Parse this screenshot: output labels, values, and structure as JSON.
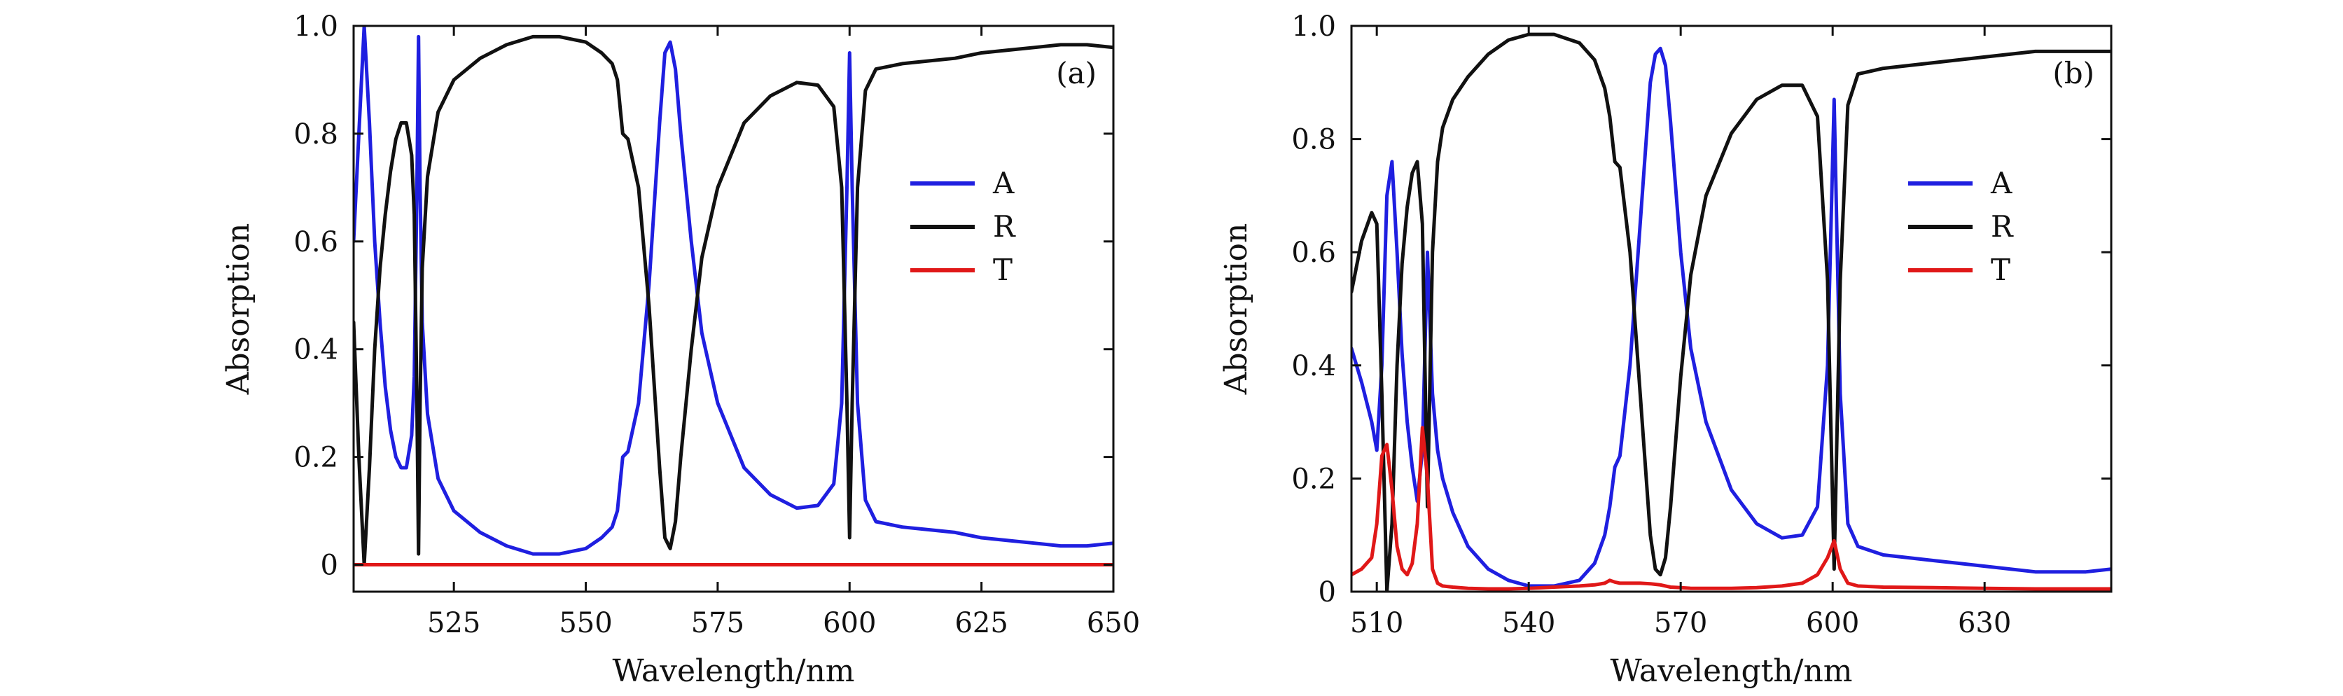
{
  "colors": {
    "A": "#1f1fe0",
    "R": "#111111",
    "T": "#e01818"
  },
  "chart_data": [
    {
      "type": "line",
      "panel_label": "(a)",
      "xlabel": "Wavelength/nm",
      "ylabel": "Absorption",
      "xlim": [
        506,
        650
      ],
      "ylim": [
        -0.05,
        1.0
      ],
      "xticks": [
        525,
        550,
        575,
        600,
        625,
        650
      ],
      "yticks": [
        0,
        0.2,
        0.4,
        0.6,
        0.8,
        1.0
      ],
      "ytick_labels": [
        "0",
        "0.2",
        "0.4",
        "0.6",
        "0.8",
        "1.0"
      ],
      "legend": [
        "A",
        "R",
        "T"
      ],
      "legend_position": "right",
      "series": [
        {
          "name": "A",
          "color": "#1f1fe0",
          "x": [
            506,
            507,
            508,
            509,
            510,
            511,
            512,
            513,
            514,
            515,
            516,
            517,
            517.5,
            518,
            518.3,
            518.6,
            519,
            520,
            522,
            525,
            530,
            535,
            540,
            545,
            550,
            553,
            555,
            556,
            557,
            558,
            560,
            562,
            564,
            565,
            566,
            567,
            568,
            570,
            572,
            575,
            580,
            585,
            590,
            594,
            597,
            598.5,
            599.5,
            600,
            600.5,
            601.5,
            603,
            605,
            610,
            615,
            620,
            625,
            630,
            635,
            640,
            645,
            650
          ],
          "y": [
            0.6,
            0.8,
            1.0,
            0.82,
            0.6,
            0.45,
            0.33,
            0.25,
            0.2,
            0.18,
            0.18,
            0.24,
            0.35,
            0.7,
            0.98,
            0.7,
            0.45,
            0.28,
            0.16,
            0.1,
            0.06,
            0.035,
            0.02,
            0.02,
            0.03,
            0.05,
            0.07,
            0.1,
            0.2,
            0.21,
            0.3,
            0.52,
            0.82,
            0.95,
            0.97,
            0.92,
            0.8,
            0.6,
            0.43,
            0.3,
            0.18,
            0.13,
            0.105,
            0.11,
            0.15,
            0.3,
            0.7,
            0.95,
            0.7,
            0.3,
            0.12,
            0.08,
            0.07,
            0.065,
            0.06,
            0.05,
            0.045,
            0.04,
            0.035,
            0.035,
            0.04
          ]
        },
        {
          "name": "R",
          "color": "#111111",
          "x": [
            506,
            507,
            508,
            509,
            510,
            511,
            512,
            513,
            514,
            515,
            516,
            517,
            517.5,
            518,
            518.3,
            518.6,
            519,
            520,
            522,
            525,
            530,
            535,
            540,
            545,
            550,
            553,
            555,
            556,
            557,
            558,
            560,
            562,
            564,
            565,
            566,
            567,
            568,
            570,
            572,
            575,
            580,
            585,
            590,
            594,
            597,
            598.5,
            599.5,
            600,
            600.5,
            601.5,
            603,
            605,
            610,
            615,
            620,
            625,
            630,
            635,
            640,
            645,
            650
          ],
          "y": [
            0.45,
            0.2,
            0.0,
            0.18,
            0.4,
            0.55,
            0.65,
            0.73,
            0.79,
            0.82,
            0.82,
            0.76,
            0.65,
            0.3,
            0.02,
            0.3,
            0.55,
            0.72,
            0.84,
            0.9,
            0.94,
            0.965,
            0.98,
            0.98,
            0.97,
            0.95,
            0.93,
            0.9,
            0.8,
            0.79,
            0.7,
            0.48,
            0.18,
            0.05,
            0.03,
            0.08,
            0.2,
            0.4,
            0.57,
            0.7,
            0.82,
            0.87,
            0.895,
            0.89,
            0.85,
            0.7,
            0.3,
            0.05,
            0.3,
            0.7,
            0.88,
            0.92,
            0.93,
            0.935,
            0.94,
            0.95,
            0.955,
            0.96,
            0.965,
            0.965,
            0.96
          ]
        },
        {
          "name": "T",
          "color": "#e01818",
          "x": [
            506,
            650
          ],
          "y": [
            0.0,
            0.0
          ]
        }
      ]
    },
    {
      "type": "line",
      "panel_label": "(b)",
      "xlabel": "Wavelength/nm",
      "ylabel": "Absorption",
      "xlim": [
        505,
        655
      ],
      "ylim": [
        0,
        1.0
      ],
      "xticks": [
        510,
        540,
        570,
        600,
        630
      ],
      "yticks": [
        0,
        0.2,
        0.4,
        0.6,
        0.8,
        1.0
      ],
      "ytick_labels": [
        "0",
        "0.2",
        "0.4",
        "0.6",
        "0.8",
        "1.0"
      ],
      "legend": [
        "A",
        "R",
        "T"
      ],
      "legend_position": "right",
      "series": [
        {
          "name": "A",
          "color": "#1f1fe0",
          "x": [
            505,
            507,
            509,
            510,
            511,
            512,
            513,
            514,
            515,
            516,
            517,
            518,
            519,
            520,
            521,
            522,
            523,
            525,
            528,
            532,
            536,
            540,
            545,
            550,
            553,
            555,
            556,
            557,
            558,
            560,
            562,
            564,
            565,
            566,
            567,
            568,
            570,
            572,
            575,
            580,
            585,
            590,
            594,
            597,
            599,
            600.3,
            601.5,
            603,
            605,
            610,
            620,
            630,
            640,
            650,
            655
          ],
          "y": [
            0.43,
            0.37,
            0.3,
            0.25,
            0.4,
            0.7,
            0.76,
            0.6,
            0.42,
            0.3,
            0.22,
            0.16,
            0.25,
            0.6,
            0.35,
            0.25,
            0.2,
            0.14,
            0.08,
            0.04,
            0.02,
            0.01,
            0.01,
            0.02,
            0.05,
            0.1,
            0.15,
            0.22,
            0.24,
            0.4,
            0.65,
            0.9,
            0.95,
            0.96,
            0.93,
            0.83,
            0.6,
            0.43,
            0.3,
            0.18,
            0.12,
            0.095,
            0.1,
            0.15,
            0.4,
            0.87,
            0.35,
            0.12,
            0.08,
            0.065,
            0.055,
            0.045,
            0.035,
            0.035,
            0.04
          ]
        },
        {
          "name": "R",
          "color": "#111111",
          "x": [
            505,
            507,
            509,
            510,
            511,
            512,
            513,
            514,
            515,
            516,
            517,
            518,
            519,
            520,
            521,
            522,
            523,
            525,
            528,
            532,
            536,
            540,
            545,
            550,
            553,
            555,
            556,
            557,
            558,
            560,
            562,
            564,
            565,
            566,
            567,
            568,
            570,
            572,
            575,
            580,
            585,
            590,
            594,
            597,
            599,
            600.3,
            601.5,
            603,
            605,
            610,
            620,
            630,
            640,
            650,
            655
          ],
          "y": [
            0.53,
            0.62,
            0.67,
            0.65,
            0.35,
            0.0,
            0.12,
            0.4,
            0.58,
            0.68,
            0.74,
            0.76,
            0.65,
            0.15,
            0.6,
            0.76,
            0.82,
            0.87,
            0.91,
            0.95,
            0.975,
            0.985,
            0.985,
            0.97,
            0.94,
            0.89,
            0.84,
            0.76,
            0.75,
            0.6,
            0.35,
            0.1,
            0.04,
            0.03,
            0.06,
            0.15,
            0.38,
            0.56,
            0.7,
            0.81,
            0.87,
            0.895,
            0.895,
            0.84,
            0.55,
            0.04,
            0.55,
            0.86,
            0.915,
            0.925,
            0.935,
            0.945,
            0.955,
            0.955,
            0.955
          ]
        },
        {
          "name": "T",
          "color": "#e01818",
          "x": [
            505,
            507,
            509,
            510,
            511,
            512,
            513,
            514,
            515,
            516,
            517,
            518,
            519,
            520,
            521,
            522,
            523,
            525,
            528,
            532,
            536,
            540,
            545,
            550,
            553,
            555,
            556,
            557,
            558,
            560,
            562,
            564,
            565,
            566,
            567,
            568,
            570,
            572,
            575,
            580,
            585,
            590,
            594,
            597,
            599,
            600.3,
            601.5,
            603,
            605,
            610,
            620,
            630,
            640,
            650,
            655
          ],
          "y": [
            0.03,
            0.04,
            0.06,
            0.12,
            0.24,
            0.26,
            0.18,
            0.08,
            0.04,
            0.03,
            0.05,
            0.12,
            0.29,
            0.2,
            0.04,
            0.015,
            0.01,
            0.008,
            0.006,
            0.005,
            0.005,
            0.006,
            0.008,
            0.01,
            0.012,
            0.015,
            0.02,
            0.017,
            0.015,
            0.015,
            0.015,
            0.014,
            0.013,
            0.012,
            0.01,
            0.008,
            0.007,
            0.006,
            0.006,
            0.006,
            0.007,
            0.01,
            0.015,
            0.03,
            0.06,
            0.09,
            0.04,
            0.015,
            0.01,
            0.008,
            0.007,
            0.006,
            0.005,
            0.005,
            0.005
          ]
        }
      ]
    }
  ]
}
